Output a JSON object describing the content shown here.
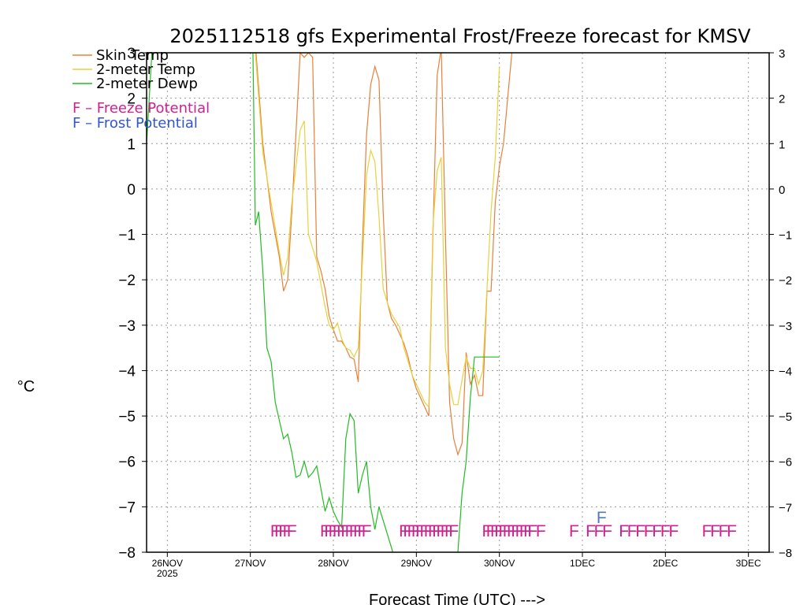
{
  "chart_data": {
    "type": "line",
    "title": "2025112518 gfs Experimental Frost/Freeze forecast for KMSV",
    "ylabel": "°C",
    "xlabel": "Forecast Time (UTC) --->",
    "ylim": [
      -8,
      3
    ],
    "xlim": [
      -0.25,
      7.25
    ],
    "y_ticks": [
      3,
      2,
      1,
      0,
      -1,
      -2,
      -3,
      -4,
      -5,
      -6,
      -7,
      -8
    ],
    "y_tick_labels": [
      "3",
      "2",
      "1",
      "0",
      "−1",
      "−2",
      "−3",
      "−4",
      "−5",
      "−6",
      "−7",
      "−8"
    ],
    "x_ticks": [
      {
        "day": 0,
        "label": "26NOV",
        "sublabel": "2025"
      },
      {
        "day": 1,
        "label": "27NOV",
        "sublabel": ""
      },
      {
        "day": 2,
        "label": "28NOV",
        "sublabel": ""
      },
      {
        "day": 3,
        "label": "29NOV",
        "sublabel": ""
      },
      {
        "day": 4,
        "label": "30NOV",
        "sublabel": ""
      },
      {
        "day": 5,
        "label": "1DEC",
        "sublabel": ""
      },
      {
        "day": 6,
        "label": "2DEC",
        "sublabel": ""
      },
      {
        "day": 7,
        "label": "3DEC",
        "sublabel": ""
      }
    ],
    "grid": true,
    "legend_position": "top-left",
    "series": [
      {
        "name": "Skin Temp",
        "color": "#e8803a",
        "x": [
          1.06,
          1.15,
          1.25,
          1.35,
          1.4,
          1.45,
          1.5,
          1.6,
          1.65,
          1.7,
          1.75,
          1.8,
          1.85,
          1.9,
          1.95,
          2.0,
          2.05,
          2.1,
          2.15,
          2.2,
          2.25,
          2.3,
          2.35,
          2.4,
          2.45,
          2.5,
          2.55,
          2.6,
          2.65,
          2.7,
          2.75,
          2.8,
          2.85,
          2.9,
          2.95,
          3.0,
          3.05,
          3.1,
          3.15,
          3.2,
          3.25,
          3.3,
          3.35,
          3.4,
          3.45,
          3.5,
          3.55,
          3.6,
          3.65,
          3.7,
          3.75,
          3.8,
          3.85,
          3.9,
          3.95,
          4.0,
          4.05,
          4.1,
          4.15,
          4.2,
          4.25,
          4.3,
          4.35,
          4.4,
          4.45,
          4.5,
          4.55,
          4.6,
          4.65,
          4.7
        ],
        "y": [
          3.2,
          1.0,
          -0.5,
          -1.5,
          -2.25,
          -2.0,
          -0.5,
          3.0,
          2.9,
          3.0,
          2.9,
          -1.5,
          -1.8,
          -2.2,
          -2.8,
          -3.1,
          -3.35,
          -3.35,
          -3.5,
          -3.7,
          -3.75,
          -4.25,
          -1.2,
          1.2,
          2.3,
          2.7,
          2.4,
          -0.5,
          -2.5,
          -2.85,
          -3.0,
          -3.2,
          -3.4,
          -3.7,
          -4.1,
          -4.4,
          -4.6,
          -4.8,
          -5.0,
          -1.0,
          2.5,
          3.1,
          -1.0,
          -4.7,
          -5.5,
          -5.85,
          -5.6,
          -3.6,
          -4.3,
          -4.1,
          -4.55,
          -4.55,
          -2.25,
          -2.25,
          -0.3,
          0.5,
          1.0,
          2.0,
          3.0,
          3.2,
          3.2,
          3.2,
          3.2,
          3.2,
          3.2,
          3.2,
          3.2,
          3.2,
          3.2,
          3.2
        ]
      },
      {
        "name": "2-meter Temp",
        "color": "#e6d23c",
        "x": [
          1.06,
          1.15,
          1.25,
          1.35,
          1.4,
          1.45,
          1.5,
          1.6,
          1.65,
          1.7,
          1.75,
          1.8,
          1.85,
          1.9,
          1.95,
          2.0,
          2.05,
          2.1,
          2.15,
          2.2,
          2.25,
          2.3,
          2.35,
          2.4,
          2.45,
          2.5,
          2.55,
          2.6,
          2.65,
          2.7,
          2.75,
          2.8,
          2.85,
          2.9,
          2.95,
          3.0,
          3.05,
          3.1,
          3.15,
          3.2,
          3.25,
          3.3,
          3.35,
          3.4,
          3.45,
          3.5,
          3.55,
          3.6,
          3.65,
          3.7,
          3.75,
          3.8,
          3.85,
          3.9,
          3.95,
          4.0
        ],
        "y": [
          3.0,
          0.8,
          -0.3,
          -1.4,
          -1.9,
          -1.5,
          -0.3,
          1.3,
          1.5,
          -1.0,
          -1.3,
          -1.6,
          -2.1,
          -2.6,
          -3.0,
          -3.1,
          -2.95,
          -3.3,
          -3.5,
          -3.55,
          -3.7,
          -3.5,
          -1.6,
          0.3,
          0.85,
          0.6,
          -0.6,
          -2.2,
          -2.5,
          -2.75,
          -2.9,
          -3.05,
          -3.5,
          -3.8,
          -4.1,
          -4.3,
          -4.5,
          -4.7,
          -4.8,
          -0.8,
          0.4,
          0.7,
          -3.5,
          -4.3,
          -4.75,
          -4.75,
          -4.2,
          -3.7,
          -3.95,
          -3.95,
          -4.3,
          -4.0,
          -2.2,
          -0.5,
          0.7,
          2.7
        ]
      },
      {
        "name": "2-meter Dewp",
        "color": "#22bb22",
        "x": [
          -0.25,
          -0.18,
          -0.12,
          -0.05,
          1.03,
          1.06,
          1.1,
          1.15,
          1.2,
          1.25,
          1.3,
          1.35,
          1.4,
          1.45,
          1.5,
          1.55,
          1.6,
          1.65,
          1.7,
          1.75,
          1.8,
          1.85,
          1.9,
          1.95,
          2.0,
          2.05,
          2.1,
          2.15,
          2.2,
          2.25,
          2.3,
          2.35,
          2.4,
          2.45,
          2.5,
          2.55,
          2.6,
          2.65,
          2.7,
          2.75,
          2.8,
          2.85,
          2.9,
          2.95,
          3.0,
          3.05,
          3.1,
          3.15,
          3.2,
          3.25,
          3.3,
          3.35,
          3.4,
          3.45,
          3.5,
          3.55,
          3.6,
          3.65,
          3.7,
          3.75,
          3.8,
          3.85,
          3.9,
          3.95,
          4.0
        ],
        "y": [
          1.0,
          3.2,
          3.2,
          3.2,
          3.2,
          -0.8,
          -0.5,
          -1.8,
          -3.5,
          -3.8,
          -4.7,
          -5.1,
          -5.5,
          -5.4,
          -5.8,
          -6.35,
          -6.3,
          -6.0,
          -6.35,
          -6.25,
          -6.1,
          -6.6,
          -7.1,
          -6.8,
          -7.1,
          -7.3,
          -7.45,
          -5.5,
          -4.95,
          -5.1,
          -6.7,
          -6.3,
          -6.0,
          -7.0,
          -7.5,
          -7.0,
          -7.3,
          -7.6,
          -7.9,
          -8.2,
          -8.3,
          -8.2,
          -8.3,
          -8.1,
          -8.2,
          -8.4,
          -8.4,
          -8.4,
          -8.4,
          -8.4,
          -8.4,
          -8.4,
          -8.4,
          -8.4,
          -8.0,
          -6.7,
          -6.0,
          -4.6,
          -3.7,
          -3.7,
          -3.7,
          -3.7,
          -3.7,
          -3.7,
          -3.7
        ]
      }
    ],
    "legend": [
      {
        "label": "Skin Temp",
        "color": "#e8803a",
        "kind": "line"
      },
      {
        "label": "2-meter Temp",
        "color": "#e6d23c",
        "kind": "line"
      },
      {
        "label": "2-meter Dewp",
        "color": "#22bb22",
        "kind": "line"
      },
      {
        "label": "F – Freeze Potential",
        "color": "#d02090",
        "kind": "text"
      },
      {
        "label": "F – Frost Potential",
        "color": "#3355cc",
        "kind": "text"
      }
    ],
    "freeze_marks": {
      "glyph": "F",
      "color": "#d02090",
      "y": -7.5,
      "x": [
        1.3,
        1.35,
        1.4,
        1.45,
        1.5,
        1.9,
        1.95,
        2.0,
        2.05,
        2.1,
        2.15,
        2.2,
        2.25,
        2.3,
        2.35,
        2.4,
        2.85,
        2.9,
        2.95,
        3.0,
        3.05,
        3.1,
        3.15,
        3.2,
        3.25,
        3.3,
        3.35,
        3.4,
        3.45,
        3.85,
        3.9,
        3.95,
        4.0,
        4.05,
        4.1,
        4.15,
        4.2,
        4.25,
        4.3,
        4.35,
        4.4,
        4.5,
        4.9,
        5.1,
        5.2,
        5.3,
        5.5,
        5.6,
        5.7,
        5.8,
        5.9,
        6.0,
        6.1,
        6.5,
        6.6,
        6.7,
        6.8
      ]
    },
    "frost_marks": {
      "glyph": "F",
      "color": "#5577bb",
      "y": -7.2,
      "x": [
        5.23
      ]
    }
  }
}
